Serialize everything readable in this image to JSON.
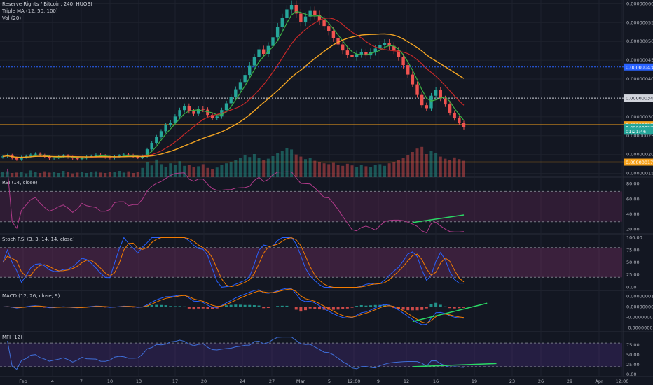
{
  "legend": {
    "symbol": "Reserve Rights / Bitcoin, 240, HUOBI",
    "ma": "Triple MA (12, 50, 100)",
    "vol": "Vol (20)"
  },
  "panel_titles": {
    "rsi": "RSI (14, close)",
    "stoch": "Stoch RSI (3, 3, 14, 14, close)",
    "macd": "MACD (12, 26, close, 9)",
    "mfi": "MFI (12)"
  },
  "colors": {
    "background": "#131722",
    "up": "#26a69a",
    "down": "#ef5350",
    "ma_fast": "#3cb043",
    "ma_mid": "#c62828",
    "ma_slow": "#f5a623",
    "indicator": "#b03a8a",
    "stoch_k": "#2962ff",
    "stoch_d": "#f57c00",
    "mfi_line": "#3f6fd9",
    "trendline": "#2bd965",
    "level_line": "#f7a21b"
  },
  "chart_data": {
    "type": "candlestick",
    "price_axis": [
      "0.0000006000",
      "0.0000005500",
      "0.0000005000",
      "0.0000004500",
      "0.0000004000",
      "0.0000003000",
      "0.0000002500",
      "0.0000002000",
      "0.0000001500"
    ],
    "price_ticks": [
      6e-07,
      5.5e-07,
      5e-07,
      4.5e-07,
      4e-07,
      3e-07,
      2.5e-07,
      2e-07,
      1.5e-07
    ],
    "price_range": [
      1.4e-07,
      6.1e-07
    ],
    "price_labels": [
      {
        "text": "0.0000004321",
        "value": 4.321e-07,
        "color": "#2962ff"
      },
      {
        "text": "0.0000003498",
        "value": 3.498e-07,
        "color": "#d1d4dc"
      },
      {
        "text": "0.0000002791",
        "value": 2.791e-07,
        "color": "#f7a21b"
      },
      {
        "text": "0.0000002722",
        "value": 2.722e-07,
        "color": "#26a69a"
      },
      {
        "text": "01:21:46",
        "value": 2.62e-07,
        "color": "#26a69a"
      },
      {
        "text": "0.0000001799",
        "value": 1.799e-07,
        "color": "#f7a21b"
      }
    ],
    "x_axis": [
      "Feb",
      "4",
      "7",
      "10",
      "13",
      "17",
      "20",
      "24",
      "27",
      "Mar",
      "5",
      "12:00",
      "9",
      "12",
      "16",
      "19",
      "23",
      "26",
      "29",
      "Apr",
      "12:00"
    ],
    "candles_close": [
      1.95e-07,
      1.98e-07,
      1.91e-07,
      1.87e-07,
      1.93e-07,
      1.96e-07,
      2e-07,
      2.02e-07,
      1.98e-07,
      1.94e-07,
      1.9e-07,
      1.92e-07,
      1.95e-07,
      1.97e-07,
      1.93e-07,
      1.9e-07,
      1.88e-07,
      1.91e-07,
      1.94e-07,
      1.96e-07,
      1.99e-07,
      1.97e-07,
      1.93e-07,
      1.91e-07,
      1.94e-07,
      1.97e-07,
      2e-07,
      1.98e-07,
      1.95e-07,
      1.92e-07,
      1.96e-07,
      2.14e-07,
      2.31e-07,
      2.47e-07,
      2.62e-07,
      2.78e-07,
      2.85e-07,
      3.01e-07,
      3.18e-07,
      3.29e-07,
      3.15e-07,
      3.08e-07,
      3.22e-07,
      3.19e-07,
      3.05e-07,
      2.97e-07,
      3.01e-07,
      3.18e-07,
      3.36e-07,
      3.52e-07,
      3.73e-07,
      3.92e-07,
      4.11e-07,
      4.36e-07,
      4.58e-07,
      4.79e-07,
      4.67e-07,
      4.88e-07,
      5.11e-07,
      5.38e-07,
      5.62e-07,
      5.85e-07,
      5.97e-07,
      5.74e-07,
      5.52e-07,
      5.66e-07,
      5.81e-07,
      5.7e-07,
      5.56e-07,
      5.41e-07,
      5.27e-07,
      5.09e-07,
      4.92e-07,
      4.76e-07,
      4.65e-07,
      4.58e-07,
      4.66e-07,
      4.71e-07,
      4.63e-07,
      4.72e-07,
      4.81e-07,
      4.9e-07,
      4.96e-07,
      4.88e-07,
      4.76e-07,
      4.58e-07,
      4.37e-07,
      4.12e-07,
      3.86e-07,
      3.58e-07,
      3.31e-07,
      3.23e-07,
      3.56e-07,
      3.71e-07,
      3.49e-07,
      3.33e-07,
      3.11e-07,
      2.96e-07,
      2.84e-07,
      2.72e-07
    ],
    "volume": [
      0.12,
      0.14,
      0.1,
      0.11,
      0.13,
      0.09,
      0.16,
      0.12,
      0.1,
      0.14,
      0.11,
      0.13,
      0.1,
      0.15,
      0.12,
      0.09,
      0.11,
      0.13,
      0.1,
      0.12,
      0.14,
      0.11,
      0.1,
      0.13,
      0.12,
      0.15,
      0.11,
      0.14,
      0.1,
      0.12,
      0.22,
      0.35,
      0.28,
      0.42,
      0.31,
      0.25,
      0.33,
      0.29,
      0.38,
      0.27,
      0.3,
      0.24,
      0.26,
      0.31,
      0.22,
      0.2,
      0.23,
      0.29,
      0.33,
      0.36,
      0.41,
      0.45,
      0.52,
      0.48,
      0.55,
      0.46,
      0.4,
      0.44,
      0.5,
      0.58,
      0.62,
      0.7,
      0.66,
      0.54,
      0.49,
      0.43,
      0.46,
      0.39,
      0.36,
      0.33,
      0.31,
      0.34,
      0.29,
      0.27,
      0.32,
      0.28,
      0.25,
      0.3,
      0.26,
      0.24,
      0.29,
      0.31,
      0.27,
      0.33,
      0.36,
      0.4,
      0.45,
      0.52,
      0.6,
      0.68,
      0.72,
      0.55,
      0.63,
      0.58,
      0.49,
      0.44,
      0.41,
      0.47,
      0.43,
      0.39
    ],
    "rsi": {
      "axis": [
        "80.00",
        "60.00",
        "40.00",
        "20.00"
      ],
      "ticks": [
        80,
        60,
        40,
        20
      ],
      "range": [
        15,
        87
      ],
      "bands": [
        70,
        30
      ],
      "trendline": [
        [
          88,
          29
        ],
        [
          99,
          39
        ]
      ]
    },
    "stoch": {
      "axis": [
        "100.00",
        "75.00",
        "50.00",
        "25.00",
        "0.00"
      ],
      "ticks": [
        100,
        75,
        50,
        25,
        0
      ],
      "range": [
        -5,
        105
      ],
      "bands": [
        80,
        20
      ]
    },
    "macd": {
      "axis": [
        "0.0000000100",
        "0.0000000000",
        "-0.0000000100",
        "-0.0000000200"
      ],
      "ticks": [
        1e-08,
        0,
        -1e-08,
        -2e-08
      ],
      "range": [
        -2.3e-08,
        1.5e-08
      ],
      "trendline": [
        [
          88,
          -1.4e-08
        ],
        [
          104,
          3.5e-09
        ]
      ]
    },
    "mfi": {
      "axis": [
        "75.00",
        "50.00",
        "25.00",
        "0.00"
      ],
      "ticks": [
        75,
        50,
        25,
        0
      ],
      "range": [
        -5,
        105
      ],
      "bands": [
        80,
        20
      ],
      "trendline": [
        [
          88,
          20
        ],
        [
          106,
          28
        ]
      ]
    }
  }
}
